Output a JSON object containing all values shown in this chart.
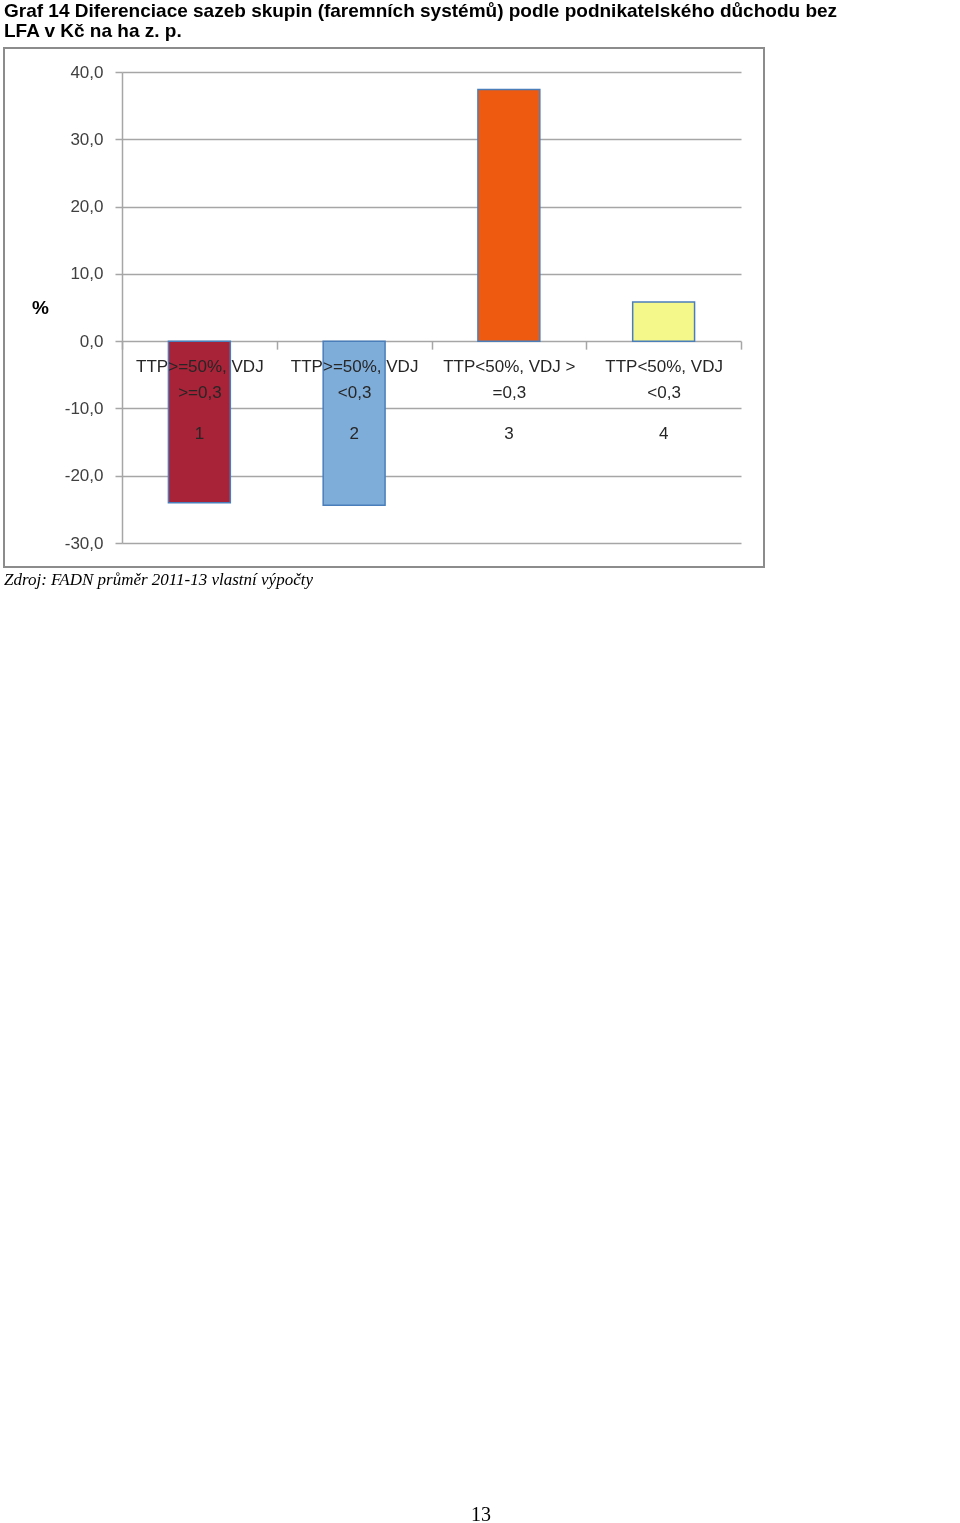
{
  "chart_data": {
    "type": "bar",
    "title": "Graf 14 Diferenciace sazeb skupin (faremních systémů) podle podnikatelského důchodu bez LFA v Kč na ha z. p.",
    "ylabel": "%",
    "categories": [
      "TTP>=50%, VDJ >=0,3",
      "TTP>=50%, VDJ <0,3",
      "TTP<50%, VDJ >=0,3",
      "TTP<50%, VDJ <0,3"
    ],
    "values": [
      -24.0,
      -24.4,
      37.4,
      5.8
    ],
    "colors": [
      "#a82238",
      "#7fadd9",
      "#ee5a10",
      "#f4f78a"
    ],
    "ylim": [
      -30,
      40
    ],
    "yticks": [
      {
        "value": -30,
        "label": "-30,0"
      },
      {
        "value": -20,
        "label": "-20,0"
      },
      {
        "value": -10,
        "label": "-10,0"
      },
      {
        "value": 0,
        "label": "0,0"
      },
      {
        "value": 10,
        "label": "10,0"
      },
      {
        "value": 20,
        "label": "20,0"
      },
      {
        "value": 30,
        "label": "30,0"
      },
      {
        "value": 40,
        "label": "40,0"
      }
    ],
    "grid": "y",
    "legend": false,
    "annotations": [
      "1",
      "2",
      "3",
      "4",
      "Zdroj: FADN průměr 2011-13 vlastní výpočty",
      "13"
    ]
  }
}
